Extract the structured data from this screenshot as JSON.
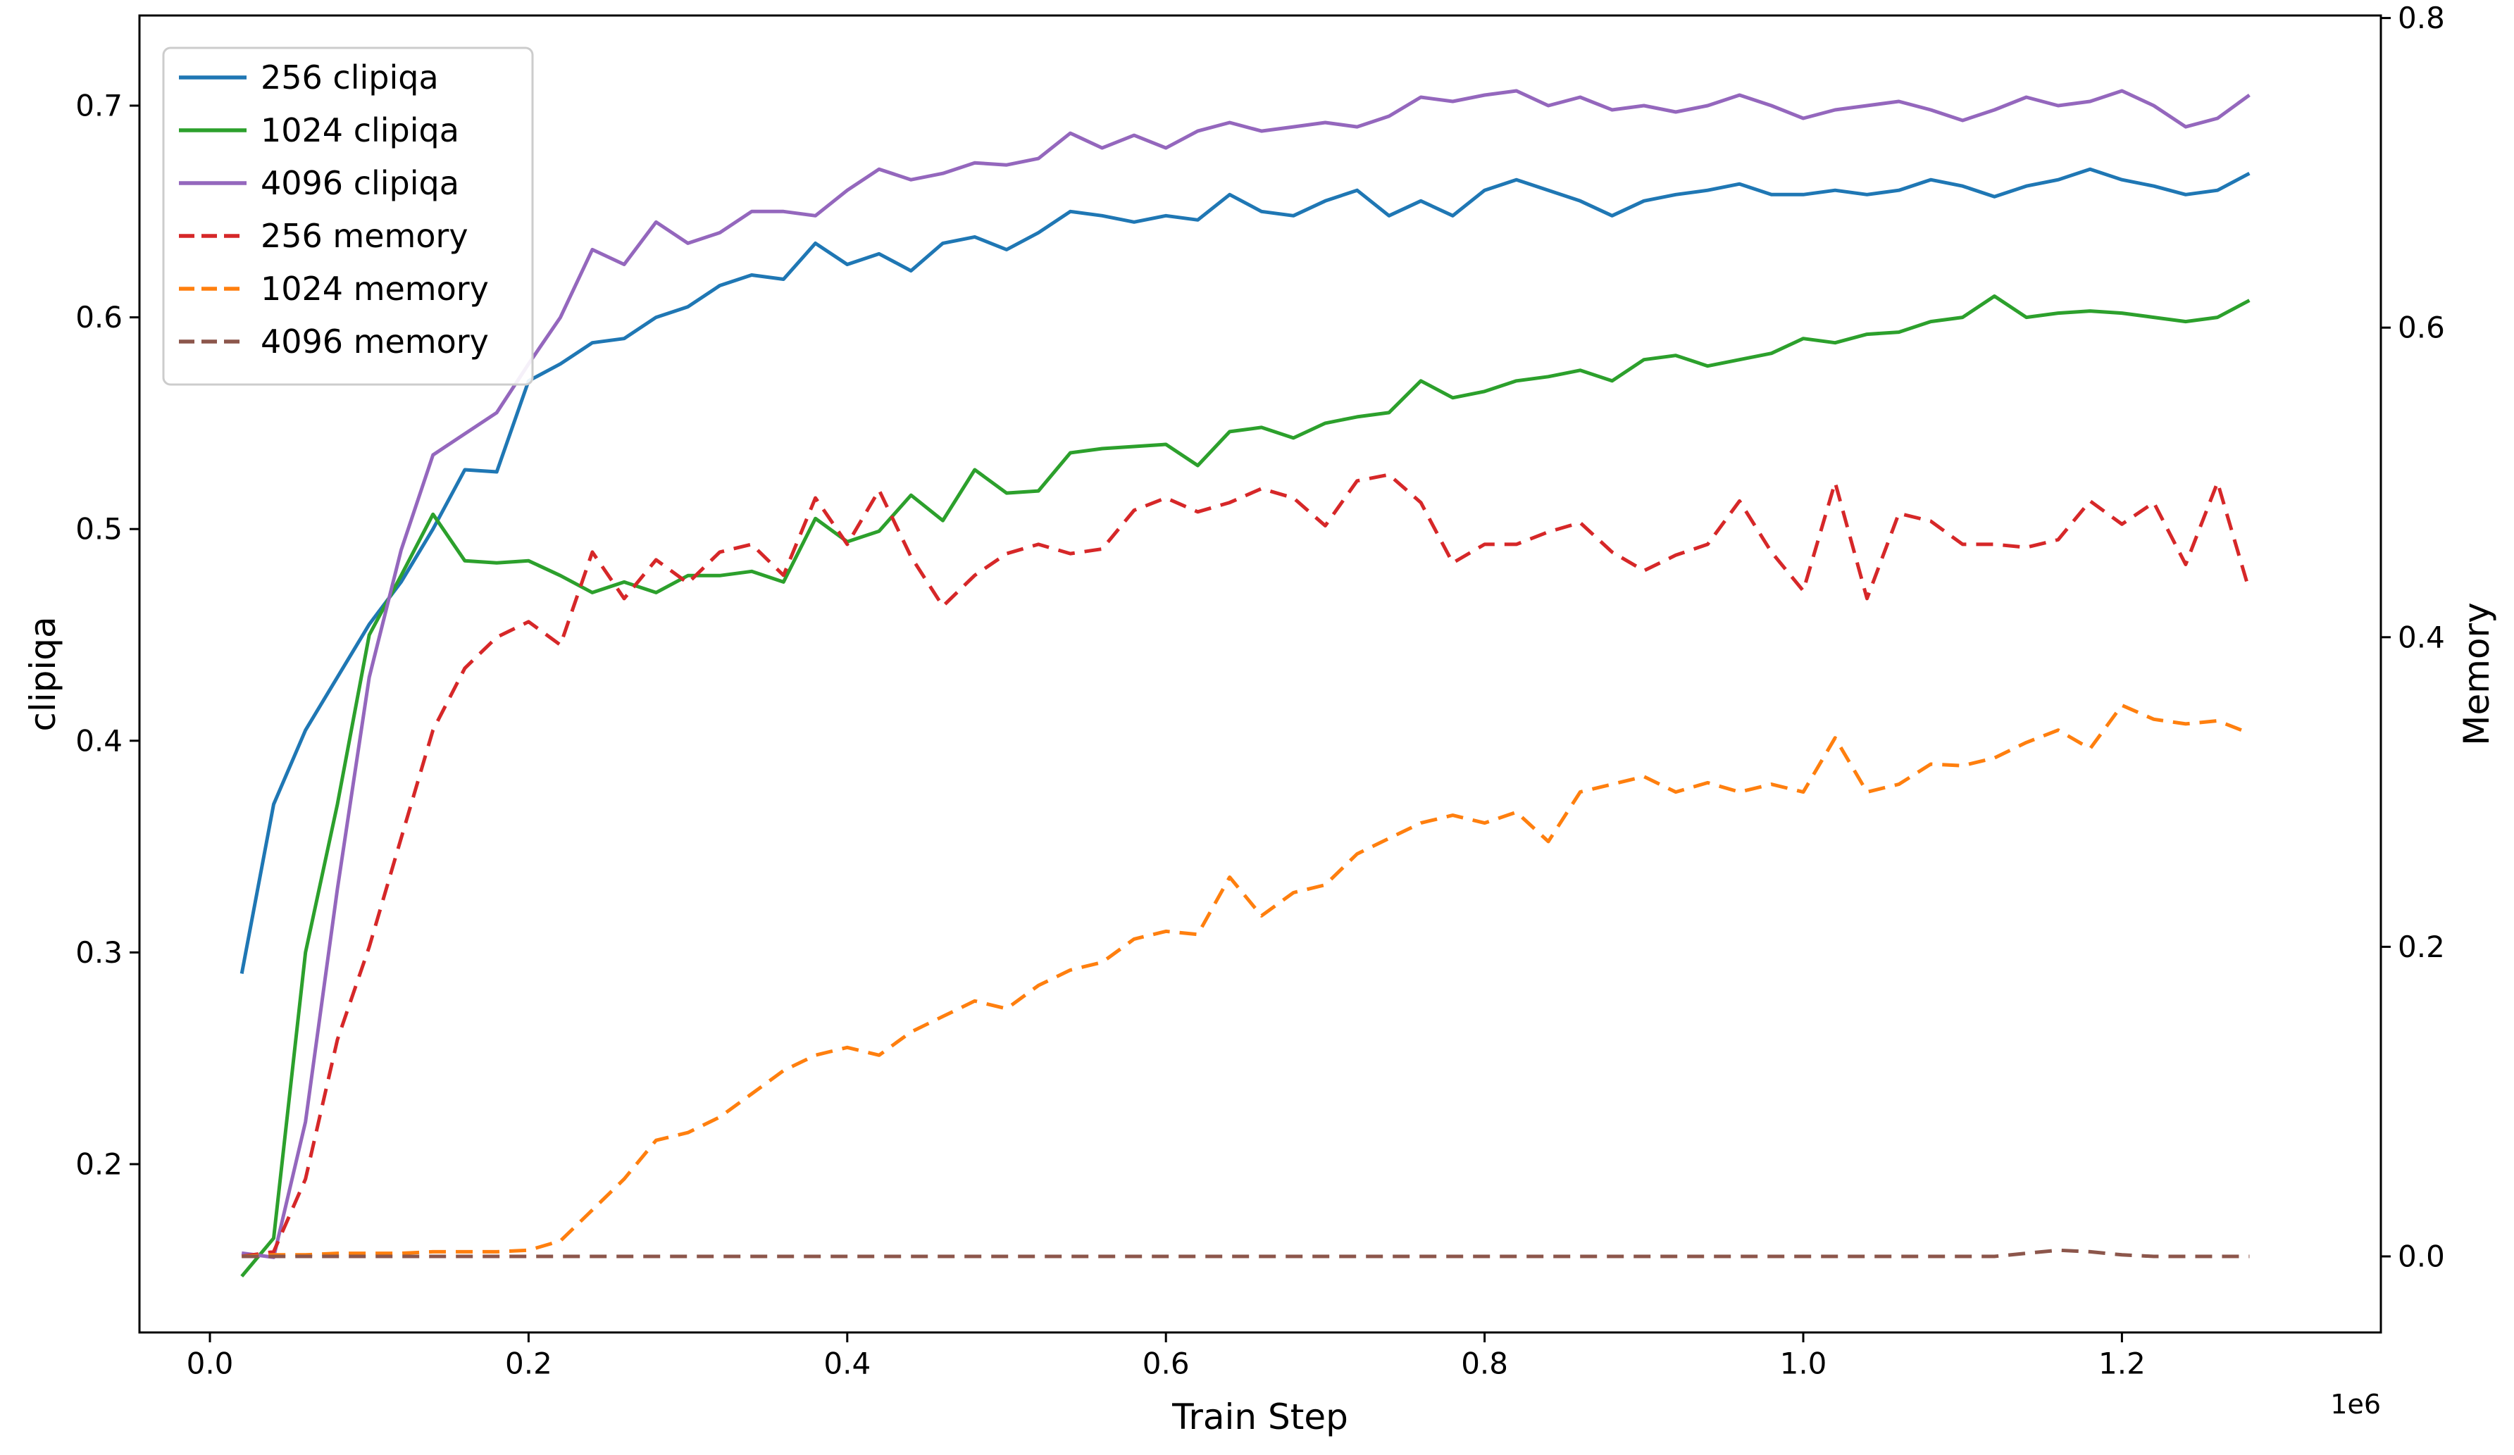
{
  "chart_data": {
    "type": "line",
    "xlabel": "Train Step",
    "ylabel_left": "clipiqa",
    "ylabel_right": "Memory",
    "x_offset_label": "1e6",
    "grid": false,
    "legend_position": "upper left",
    "x_tick_values": [
      0,
      200000,
      400000,
      600000,
      800000,
      1000000,
      1200000
    ],
    "x_tick_labels": [
      "0.0",
      "0.2",
      "0.4",
      "0.6",
      "0.8",
      "1.0",
      "1.2"
    ],
    "y_left_tick_values": [
      0.2,
      0.3,
      0.4,
      0.5,
      0.6,
      0.7
    ],
    "y_left_tick_labels": [
      "0.2",
      "0.3",
      "0.4",
      "0.5",
      "0.6",
      "0.7"
    ],
    "y_right_tick_values": [
      0.0,
      0.2,
      0.4,
      0.6,
      0.8
    ],
    "y_right_tick_labels": [
      "0.0",
      "0.2",
      "0.4",
      "0.6",
      "0.8"
    ],
    "xlim": [
      -44000,
      1362000
    ],
    "ylim_left": [
      0.121,
      0.742
    ],
    "ylim_right": [
      -0.049,
      0.8
    ],
    "x_step": 20000,
    "x": [
      20000,
      40000,
      60000,
      80000,
      100000,
      120000,
      140000,
      160000,
      180000,
      200000,
      220000,
      240000,
      260000,
      280000,
      300000,
      320000,
      340000,
      360000,
      380000,
      400000,
      420000,
      440000,
      460000,
      480000,
      500000,
      520000,
      540000,
      560000,
      580000,
      600000,
      620000,
      640000,
      660000,
      680000,
      700000,
      720000,
      740000,
      760000,
      780000,
      800000,
      820000,
      840000,
      860000,
      880000,
      900000,
      920000,
      940000,
      960000,
      980000,
      1000000,
      1020000,
      1040000,
      1060000,
      1080000,
      1100000,
      1120000,
      1140000,
      1160000,
      1180000,
      1200000,
      1220000,
      1240000,
      1260000,
      1280000
    ],
    "series": [
      {
        "label": "256 clipiqa",
        "axis": "left",
        "color": "#1f77b4",
        "line_style": "solid",
        "values": [
          0.29,
          0.37,
          0.405,
          0.43,
          0.455,
          0.475,
          0.5,
          0.528,
          0.527,
          0.57,
          0.578,
          0.588,
          0.59,
          0.6,
          0.605,
          0.615,
          0.62,
          0.618,
          0.635,
          0.625,
          0.63,
          0.622,
          0.635,
          0.638,
          0.632,
          0.64,
          0.65,
          0.648,
          0.645,
          0.648,
          0.646,
          0.658,
          0.65,
          0.648,
          0.655,
          0.66,
          0.648,
          0.655,
          0.648,
          0.66,
          0.665,
          0.66,
          0.655,
          0.648,
          0.655,
          0.658,
          0.66,
          0.663,
          0.658,
          0.658,
          0.66,
          0.658,
          0.66,
          0.665,
          0.662,
          0.657,
          0.662,
          0.665,
          0.67,
          0.665,
          0.662,
          0.658,
          0.66,
          0.668
        ]
      },
      {
        "label": "1024 clipiqa",
        "axis": "left",
        "color": "#2ca02c",
        "line_style": "solid",
        "values": [
          0.147,
          0.165,
          0.3,
          0.37,
          0.45,
          0.478,
          0.507,
          0.485,
          0.484,
          0.485,
          0.478,
          0.47,
          0.475,
          0.47,
          0.478,
          0.478,
          0.48,
          0.475,
          0.505,
          0.494,
          0.499,
          0.516,
          0.504,
          0.528,
          0.517,
          0.518,
          0.536,
          0.538,
          0.539,
          0.54,
          0.53,
          0.546,
          0.548,
          0.543,
          0.55,
          0.553,
          0.555,
          0.57,
          0.562,
          0.565,
          0.57,
          0.572,
          0.575,
          0.57,
          0.58,
          0.582,
          0.577,
          0.58,
          0.583,
          0.59,
          0.588,
          0.592,
          0.593,
          0.598,
          0.6,
          0.61,
          0.6,
          0.602,
          0.603,
          0.602,
          0.6,
          0.598,
          0.6,
          0.608
        ]
      },
      {
        "label": "4096 clipiqa",
        "axis": "left",
        "color": "#9467bd",
        "line_style": "solid",
        "values": [
          0.158,
          0.156,
          0.22,
          0.33,
          0.43,
          0.49,
          0.535,
          0.545,
          0.555,
          0.578,
          0.6,
          0.632,
          0.625,
          0.645,
          0.635,
          0.64,
          0.65,
          0.65,
          0.648,
          0.66,
          0.67,
          0.665,
          0.668,
          0.673,
          0.672,
          0.675,
          0.687,
          0.68,
          0.686,
          0.68,
          0.688,
          0.692,
          0.688,
          0.69,
          0.692,
          0.69,
          0.695,
          0.704,
          0.702,
          0.705,
          0.707,
          0.7,
          0.704,
          0.698,
          0.7,
          0.697,
          0.7,
          0.705,
          0.7,
          0.694,
          0.698,
          0.7,
          0.702,
          0.698,
          0.693,
          0.698,
          0.704,
          0.7,
          0.702,
          0.707,
          0.7,
          0.69,
          0.694,
          0.705
        ]
      },
      {
        "label": "256 memory",
        "axis": "right",
        "color": "#d62728",
        "line_style": "dashed",
        "values": [
          0.0,
          0.003,
          0.05,
          0.14,
          0.2,
          0.27,
          0.34,
          0.38,
          0.4,
          0.41,
          0.395,
          0.455,
          0.425,
          0.45,
          0.435,
          0.455,
          0.46,
          0.44,
          0.49,
          0.46,
          0.495,
          0.452,
          0.42,
          0.44,
          0.454,
          0.46,
          0.454,
          0.457,
          0.482,
          0.49,
          0.481,
          0.487,
          0.496,
          0.49,
          0.472,
          0.501,
          0.505,
          0.487,
          0.448,
          0.46,
          0.46,
          0.468,
          0.474,
          0.455,
          0.443,
          0.453,
          0.46,
          0.488,
          0.455,
          0.43,
          0.5,
          0.425,
          0.48,
          0.475,
          0.46,
          0.46,
          0.458,
          0.463,
          0.488,
          0.473,
          0.487,
          0.447,
          0.5,
          0.43
        ]
      },
      {
        "label": "1024 memory",
        "axis": "right",
        "color": "#ff7f0e",
        "line_style": "dashed",
        "values": [
          0.0,
          0.001,
          0.001,
          0.002,
          0.002,
          0.002,
          0.003,
          0.003,
          0.003,
          0.004,
          0.01,
          0.03,
          0.05,
          0.075,
          0.08,
          0.09,
          0.105,
          0.12,
          0.13,
          0.135,
          0.13,
          0.145,
          0.155,
          0.165,
          0.16,
          0.175,
          0.185,
          0.19,
          0.205,
          0.21,
          0.208,
          0.245,
          0.22,
          0.235,
          0.24,
          0.26,
          0.27,
          0.28,
          0.285,
          0.28,
          0.287,
          0.268,
          0.3,
          0.305,
          0.31,
          0.3,
          0.306,
          0.3,
          0.305,
          0.3,
          0.335,
          0.3,
          0.305,
          0.318,
          0.317,
          0.322,
          0.332,
          0.34,
          0.328,
          0.356,
          0.347,
          0.344,
          0.346,
          0.338
        ]
      },
      {
        "label": "4096 memory",
        "axis": "right",
        "color": "#8c564b",
        "line_style": "dashed",
        "values": [
          0.0,
          0.0,
          0.0,
          0.0,
          0.0,
          0.0,
          0.0,
          0.0,
          0.0,
          0.0,
          0.0,
          0.0,
          0.0,
          0.0,
          0.0,
          0.0,
          0.0,
          0.0,
          0.0,
          0.0,
          0.0,
          0.0,
          0.0,
          0.0,
          0.0,
          0.0,
          0.0,
          0.0,
          0.0,
          0.0,
          0.0,
          0.0,
          0.0,
          0.0,
          0.0,
          0.0,
          0.0,
          0.0,
          0.0,
          0.0,
          0.0,
          0.0,
          0.0,
          0.0,
          0.0,
          0.0,
          0.0,
          0.0,
          0.0,
          0.0,
          0.0,
          0.0,
          0.0,
          0.0,
          0.0,
          0.0,
          0.002,
          0.004,
          0.003,
          0.001,
          0.0,
          0.0,
          0.0,
          0.0
        ]
      }
    ]
  }
}
